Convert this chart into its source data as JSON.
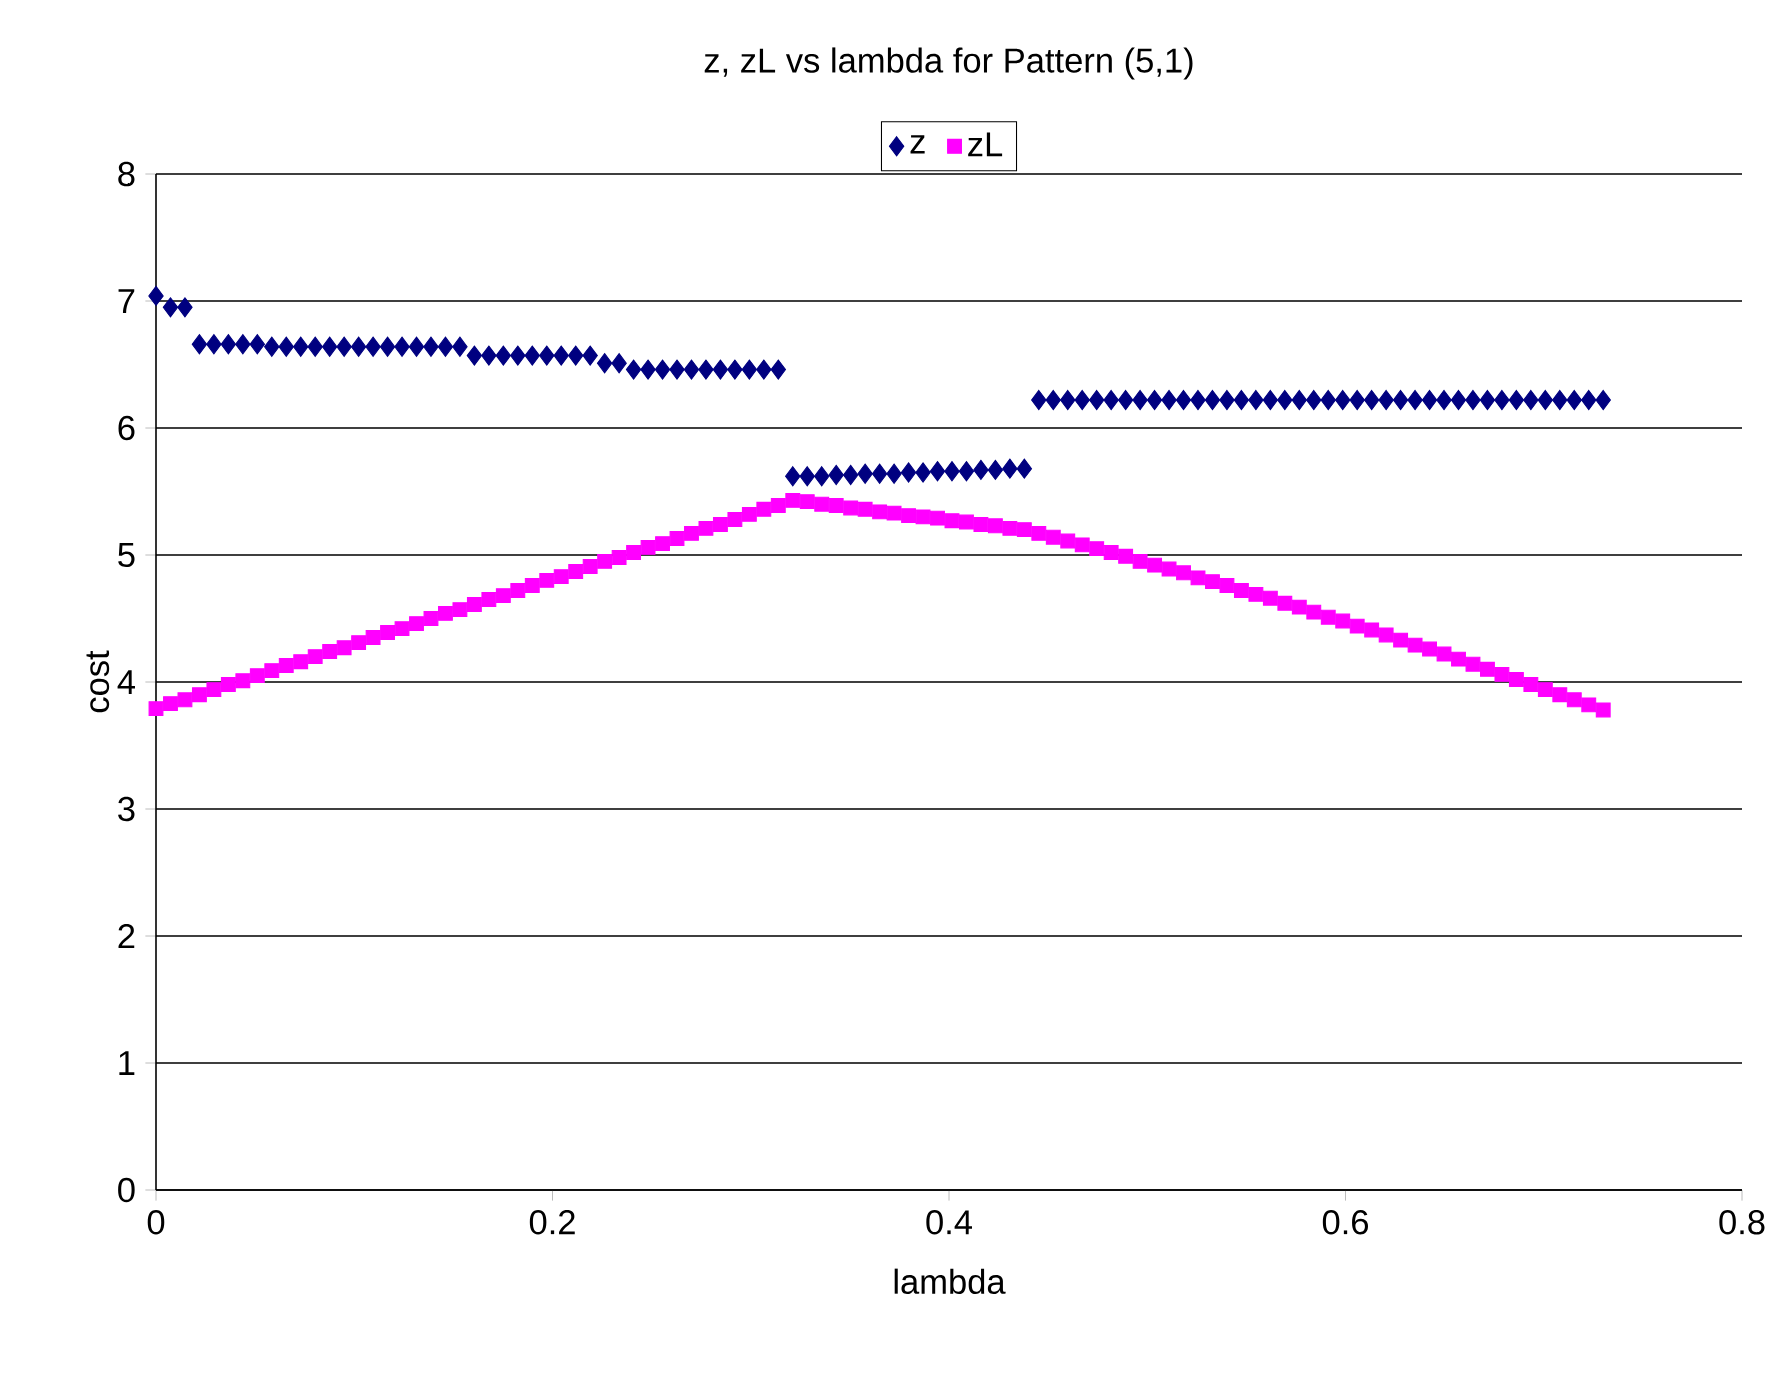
{
  "chart_data": {
    "type": "scatter",
    "title": "z, zL vs lambda for Pattern (5,1)",
    "xlabel": "lambda",
    "ylabel": "cost",
    "x": [
      0,
      0.0073,
      0.0146,
      0.0219,
      0.0292,
      0.0365,
      0.0438,
      0.0511,
      0.0584,
      0.0657,
      0.073,
      0.0803,
      0.0876,
      0.0949,
      0.1022,
      0.1095,
      0.1168,
      0.1241,
      0.1314,
      0.1387,
      0.146,
      0.1533,
      0.1606,
      0.1679,
      0.1752,
      0.1825,
      0.1898,
      0.1971,
      0.2044,
      0.2117,
      0.219,
      0.2263,
      0.2336,
      0.2409,
      0.2482,
      0.2555,
      0.2628,
      0.2701,
      0.2774,
      0.2847,
      0.292,
      0.2993,
      0.3066,
      0.3139,
      0.3212,
      0.3285,
      0.3358,
      0.3431,
      0.3504,
      0.3577,
      0.365,
      0.3723,
      0.3796,
      0.3869,
      0.3942,
      0.4015,
      0.4088,
      0.4161,
      0.4234,
      0.4307,
      0.438,
      0.4453,
      0.4526,
      0.4599,
      0.4672,
      0.4745,
      0.4818,
      0.4891,
      0.4964,
      0.5037,
      0.511,
      0.5183,
      0.5256,
      0.5329,
      0.5402,
      0.5475,
      0.5548,
      0.5621,
      0.5694,
      0.5767,
      0.584,
      0.5913,
      0.5986,
      0.6059,
      0.6132,
      0.6205,
      0.6278,
      0.6351,
      0.6424,
      0.6497,
      0.657,
      0.6643,
      0.6716,
      0.6789,
      0.6862,
      0.6935,
      0.7008,
      0.7081,
      0.7154,
      0.7227,
      0.73
    ],
    "series": [
      {
        "name": "z",
        "color": "#000080",
        "marker": "diamond",
        "values": [
          7.04,
          6.95,
          6.95,
          6.66,
          6.66,
          6.66,
          6.66,
          6.66,
          6.64,
          6.64,
          6.64,
          6.64,
          6.64,
          6.64,
          6.64,
          6.64,
          6.64,
          6.64,
          6.64,
          6.64,
          6.64,
          6.64,
          6.57,
          6.57,
          6.57,
          6.57,
          6.57,
          6.57,
          6.57,
          6.57,
          6.57,
          6.51,
          6.51,
          6.46,
          6.46,
          6.46,
          6.46,
          6.46,
          6.46,
          6.46,
          6.46,
          6.46,
          6.46,
          6.46,
          5.62,
          5.62,
          5.62,
          5.63,
          5.63,
          5.64,
          5.64,
          5.64,
          5.65,
          5.65,
          5.66,
          5.66,
          5.66,
          5.67,
          5.67,
          5.68,
          5.68,
          6.22,
          6.22,
          6.22,
          6.22,
          6.22,
          6.22,
          6.22,
          6.22,
          6.22,
          6.22,
          6.22,
          6.22,
          6.22,
          6.22,
          6.22,
          6.22,
          6.22,
          6.22,
          6.22,
          6.22,
          6.22,
          6.22,
          6.22,
          6.22,
          6.22,
          6.22,
          6.22,
          6.22,
          6.22,
          6.22,
          6.22,
          6.22,
          6.22,
          6.22,
          6.22,
          6.22,
          6.22,
          6.22,
          6.22,
          6.22
        ]
      },
      {
        "name": "zL",
        "color": "#ff00ff",
        "marker": "square",
        "values": [
          3.79,
          3.83,
          3.86,
          3.9,
          3.94,
          3.98,
          4.01,
          4.05,
          4.09,
          4.13,
          4.16,
          4.2,
          4.24,
          4.27,
          4.31,
          4.35,
          4.39,
          4.42,
          4.46,
          4.5,
          4.54,
          4.57,
          4.61,
          4.65,
          4.68,
          4.72,
          4.76,
          4.8,
          4.83,
          4.87,
          4.91,
          4.95,
          4.98,
          5.02,
          5.06,
          5.09,
          5.13,
          5.17,
          5.21,
          5.24,
          5.28,
          5.32,
          5.36,
          5.39,
          5.43,
          5.42,
          5.4,
          5.39,
          5.37,
          5.36,
          5.34,
          5.33,
          5.31,
          5.3,
          5.29,
          5.27,
          5.26,
          5.24,
          5.23,
          5.21,
          5.2,
          5.17,
          5.14,
          5.11,
          5.08,
          5.05,
          5.02,
          4.99,
          4.95,
          4.92,
          4.89,
          4.86,
          4.82,
          4.79,
          4.76,
          4.72,
          4.69,
          4.66,
          4.62,
          4.59,
          4.55,
          4.51,
          4.48,
          4.44,
          4.41,
          4.37,
          4.33,
          4.29,
          4.26,
          4.22,
          4.18,
          4.14,
          4.1,
          4.06,
          4.02,
          3.98,
          3.94,
          3.9,
          3.86,
          3.82,
          3.78
        ]
      }
    ],
    "xlim": [
      0,
      0.8
    ],
    "xticks": [
      0,
      0.2,
      0.4,
      0.6,
      0.8
    ],
    "ylim": [
      0,
      8
    ],
    "yticks": [
      0,
      1,
      2,
      3,
      4,
      5,
      6,
      7,
      8
    ],
    "grid": "y",
    "legend": "top"
  }
}
